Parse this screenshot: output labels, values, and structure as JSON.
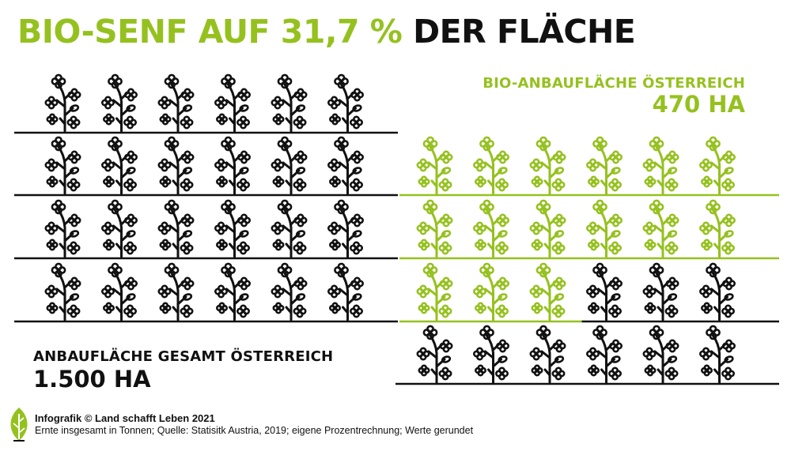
{
  "title": {
    "part_highlight": "BIO-SENF AUF 31,7 %",
    "part_dark": "DER FLÄCHE"
  },
  "bio_label": {
    "line1": "BIO-ANBAUFLÄCHE ÖSTERREICH",
    "line2": "470 HA"
  },
  "total_label": {
    "line1": "ANBAUFLÄCHE GESAMT ÖSTERREICH",
    "line2": "1.500 HA"
  },
  "footer": {
    "credit": "Infografik © Land schafft Leben 2021",
    "source": "Ernte insgesamt in Tonnen; Quelle: Statisitk Austria, 2019; eigene Prozentrechnung; Werte gerundet"
  },
  "icons": {
    "plant": "mustard-plant-icon",
    "logo": "leaf-logo-icon"
  },
  "colors": {
    "organic": "#95c11f",
    "conventional": "#111111",
    "background": "#ffffff"
  },
  "chart_data": {
    "type": "pictogram",
    "unit_per_icon_ha": 31.25,
    "total_icons": 48,
    "organic_icons": 15,
    "series": [
      {
        "name": "BIO-ANBAUFLÄCHE ÖSTERREICH",
        "value_ha": 470,
        "share_percent": 31.7
      },
      {
        "name": "ANBAUFLÄCHE GESAMT ÖSTERREICH",
        "value_ha": 1500,
        "share_percent": 100
      }
    ]
  }
}
